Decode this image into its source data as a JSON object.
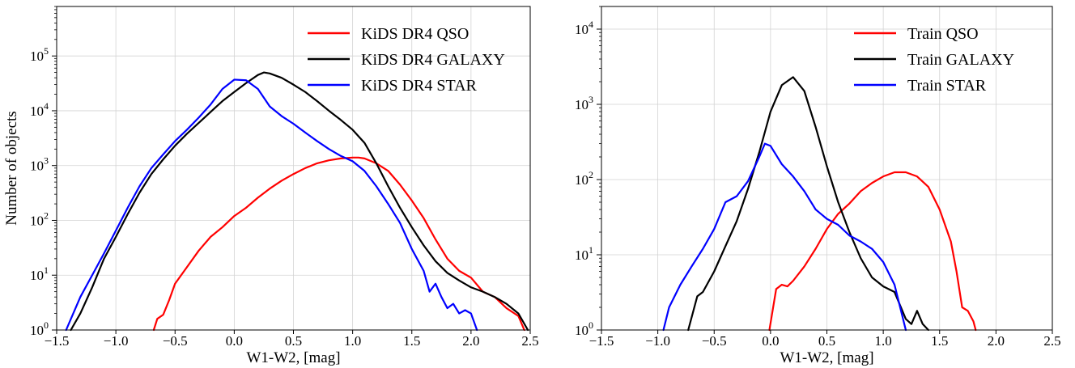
{
  "chart_data": [
    {
      "type": "line",
      "xlabel": "W1-W2, [mag]",
      "ylabel": "Number of objects",
      "yscale": "log",
      "xlim": [
        -1.5,
        2.5
      ],
      "ylim": [
        1,
        800000
      ],
      "x_ticks": [
        "−1.5",
        "−1.0",
        "−0.5",
        "0.0",
        "0.5",
        "1.0",
        "1.5",
        "2.0",
        "2.5"
      ],
      "y_ticks": [
        1,
        10,
        100,
        1000,
        10000,
        100000
      ],
      "y_tick_exps": [
        "0",
        "1",
        "2",
        "3",
        "4",
        "5"
      ],
      "grid": true,
      "legend_position": "top-right",
      "series": [
        {
          "name": "KiDS DR4 QSO",
          "color": "#ff0000",
          "points": [
            [
              -0.68,
              1
            ],
            [
              -0.65,
              1.6
            ],
            [
              -0.6,
              1.9
            ],
            [
              -0.55,
              3.5
            ],
            [
              -0.5,
              7
            ],
            [
              -0.4,
              14
            ],
            [
              -0.3,
              28
            ],
            [
              -0.2,
              50
            ],
            [
              -0.1,
              75
            ],
            [
              0.0,
              120
            ],
            [
              0.1,
              170
            ],
            [
              0.2,
              260
            ],
            [
              0.3,
              380
            ],
            [
              0.4,
              530
            ],
            [
              0.5,
              700
            ],
            [
              0.6,
              900
            ],
            [
              0.7,
              1100
            ],
            [
              0.8,
              1250
            ],
            [
              0.9,
              1350
            ],
            [
              1.0,
              1400
            ],
            [
              1.05,
              1400
            ],
            [
              1.1,
              1350
            ],
            [
              1.2,
              1100
            ],
            [
              1.3,
              800
            ],
            [
              1.4,
              450
            ],
            [
              1.5,
              230
            ],
            [
              1.6,
              110
            ],
            [
              1.7,
              45
            ],
            [
              1.8,
              20
            ],
            [
              1.9,
              12
            ],
            [
              2.0,
              9
            ],
            [
              2.1,
              5
            ],
            [
              2.2,
              4
            ],
            [
              2.3,
              2.5
            ],
            [
              2.4,
              1.8
            ],
            [
              2.45,
              1
            ]
          ]
        },
        {
          "name": "KiDS DR4 GALAXY",
          "color": "#000000",
          "points": [
            [
              -1.38,
              1
            ],
            [
              -1.3,
              2
            ],
            [
              -1.2,
              6
            ],
            [
              -1.1,
              20
            ],
            [
              -1.0,
              50
            ],
            [
              -0.9,
              130
            ],
            [
              -0.8,
              320
            ],
            [
              -0.7,
              700
            ],
            [
              -0.6,
              1300
            ],
            [
              -0.5,
              2300
            ],
            [
              -0.4,
              3800
            ],
            [
              -0.3,
              6000
            ],
            [
              -0.2,
              9500
            ],
            [
              -0.1,
              15000
            ],
            [
              0.0,
              22000
            ],
            [
              0.1,
              32000
            ],
            [
              0.2,
              45000
            ],
            [
              0.25,
              50000
            ],
            [
              0.3,
              48000
            ],
            [
              0.4,
              40000
            ],
            [
              0.5,
              30000
            ],
            [
              0.6,
              22000
            ],
            [
              0.7,
              15000
            ],
            [
              0.8,
              10000
            ],
            [
              0.9,
              6800
            ],
            [
              1.0,
              4500
            ],
            [
              1.1,
              2600
            ],
            [
              1.2,
              1100
            ],
            [
              1.3,
              420
            ],
            [
              1.4,
              170
            ],
            [
              1.5,
              75
            ],
            [
              1.6,
              35
            ],
            [
              1.7,
              18
            ],
            [
              1.8,
              11
            ],
            [
              1.9,
              8
            ],
            [
              2.0,
              6
            ],
            [
              2.1,
              5
            ],
            [
              2.2,
              4
            ],
            [
              2.3,
              3
            ],
            [
              2.4,
              2
            ],
            [
              2.48,
              1
            ]
          ]
        },
        {
          "name": "KiDS DR4 STAR",
          "color": "#0000ff",
          "points": [
            [
              -1.42,
              1
            ],
            [
              -1.3,
              4
            ],
            [
              -1.2,
              10
            ],
            [
              -1.1,
              25
            ],
            [
              -1.0,
              65
            ],
            [
              -0.9,
              170
            ],
            [
              -0.8,
              420
            ],
            [
              -0.7,
              900
            ],
            [
              -0.6,
              1600
            ],
            [
              -0.5,
              2800
            ],
            [
              -0.4,
              4500
            ],
            [
              -0.3,
              7500
            ],
            [
              -0.2,
              13000
            ],
            [
              -0.1,
              25000
            ],
            [
              0.0,
              37000
            ],
            [
              0.1,
              36000
            ],
            [
              0.2,
              25000
            ],
            [
              0.3,
              12000
            ],
            [
              0.4,
              8000
            ],
            [
              0.5,
              5800
            ],
            [
              0.6,
              4000
            ],
            [
              0.7,
              2800
            ],
            [
              0.8,
              2000
            ],
            [
              0.9,
              1500
            ],
            [
              1.0,
              1200
            ],
            [
              1.1,
              800
            ],
            [
              1.2,
              420
            ],
            [
              1.3,
              200
            ],
            [
              1.4,
              90
            ],
            [
              1.5,
              30
            ],
            [
              1.6,
              12
            ],
            [
              1.65,
              5
            ],
            [
              1.7,
              7
            ],
            [
              1.75,
              4
            ],
            [
              1.8,
              2.5
            ],
            [
              1.85,
              3
            ],
            [
              1.9,
              2
            ],
            [
              1.95,
              2.3
            ],
            [
              2.0,
              2
            ],
            [
              2.05,
              1
            ]
          ]
        }
      ]
    },
    {
      "type": "line",
      "xlabel": "W1-W2, [mag]",
      "ylabel": "",
      "yscale": "log",
      "xlim": [
        -1.5,
        2.5
      ],
      "ylim": [
        1,
        20000
      ],
      "x_ticks": [
        "−1.5",
        "−1.0",
        "−0.5",
        "0.0",
        "0.5",
        "1.0",
        "1.5",
        "2.0",
        "2.5"
      ],
      "y_ticks": [
        1,
        10,
        100,
        1000,
        10000
      ],
      "y_tick_exps": [
        "0",
        "1",
        "2",
        "3",
        "4"
      ],
      "grid": true,
      "legend_position": "top-right",
      "series": [
        {
          "name": "Train QSO",
          "color": "#ff0000",
          "points": [
            [
              -0.01,
              1
            ],
            [
              0.05,
              3.5
            ],
            [
              0.1,
              4
            ],
            [
              0.15,
              3.8
            ],
            [
              0.2,
              4.5
            ],
            [
              0.3,
              7
            ],
            [
              0.4,
              12
            ],
            [
              0.5,
              22
            ],
            [
              0.6,
              35
            ],
            [
              0.7,
              48
            ],
            [
              0.8,
              70
            ],
            [
              0.9,
              90
            ],
            [
              1.0,
              110
            ],
            [
              1.1,
              125
            ],
            [
              1.2,
              125
            ],
            [
              1.3,
              110
            ],
            [
              1.4,
              80
            ],
            [
              1.5,
              40
            ],
            [
              1.6,
              15
            ],
            [
              1.65,
              6
            ],
            [
              1.7,
              2
            ],
            [
              1.75,
              1.8
            ],
            [
              1.8,
              1.3
            ],
            [
              1.82,
              1
            ]
          ]
        },
        {
          "name": "Train GALAXY",
          "color": "#000000",
          "points": [
            [
              -0.73,
              1
            ],
            [
              -0.65,
              2.8
            ],
            [
              -0.6,
              3.2
            ],
            [
              -0.5,
              6
            ],
            [
              -0.4,
              13
            ],
            [
              -0.3,
              28
            ],
            [
              -0.2,
              75
            ],
            [
              -0.1,
              230
            ],
            [
              0.0,
              800
            ],
            [
              0.1,
              1800
            ],
            [
              0.2,
              2300
            ],
            [
              0.3,
              1500
            ],
            [
              0.4,
              500
            ],
            [
              0.5,
              150
            ],
            [
              0.6,
              50
            ],
            [
              0.7,
              20
            ],
            [
              0.8,
              9
            ],
            [
              0.9,
              5
            ],
            [
              1.0,
              3.8
            ],
            [
              1.1,
              3.2
            ],
            [
              1.2,
              1.4
            ],
            [
              1.25,
              1.2
            ],
            [
              1.3,
              1.8
            ],
            [
              1.35,
              1.2
            ],
            [
              1.4,
              1
            ]
          ]
        },
        {
          "name": "Train STAR",
          "color": "#0000ff",
          "points": [
            [
              -0.95,
              1
            ],
            [
              -0.9,
              2
            ],
            [
              -0.8,
              4
            ],
            [
              -0.7,
              7
            ],
            [
              -0.6,
              12
            ],
            [
              -0.5,
              22
            ],
            [
              -0.4,
              50
            ],
            [
              -0.3,
              60
            ],
            [
              -0.2,
              95
            ],
            [
              -0.1,
              200
            ],
            [
              -0.05,
              300
            ],
            [
              0.0,
              280
            ],
            [
              0.1,
              160
            ],
            [
              0.2,
              110
            ],
            [
              0.3,
              70
            ],
            [
              0.4,
              40
            ],
            [
              0.5,
              30
            ],
            [
              0.6,
              25
            ],
            [
              0.7,
              18
            ],
            [
              0.8,
              15
            ],
            [
              0.9,
              12
            ],
            [
              1.0,
              8
            ],
            [
              1.1,
              4
            ],
            [
              1.15,
              2
            ],
            [
              1.2,
              1
            ]
          ]
        }
      ]
    }
  ]
}
